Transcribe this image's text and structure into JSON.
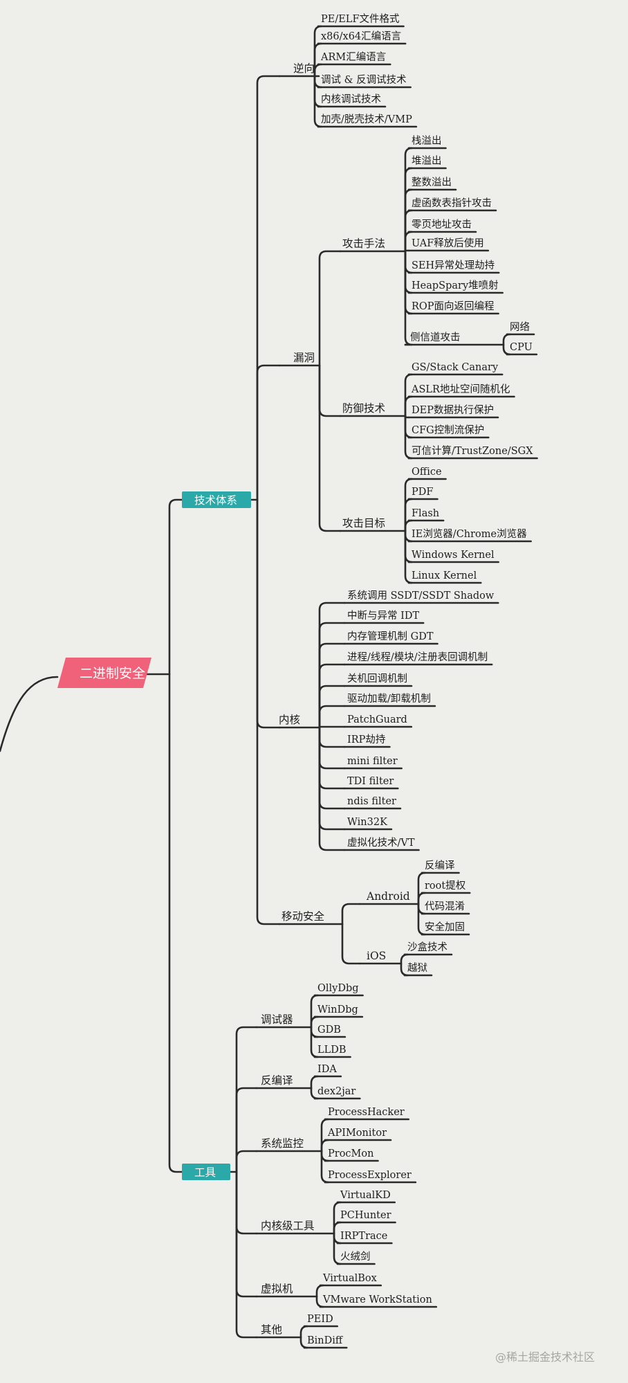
{
  "root": {
    "label": "二进制安全",
    "color": "#f0627a",
    "children": [
      {
        "label": "技术体系",
        "kind": "l1",
        "color": "#2ba8a8",
        "children": [
          {
            "label": "逆向",
            "children": [
              {
                "label": "PE/ELF文件格式"
              },
              {
                "label": "x86/x64汇编语言"
              },
              {
                "label": "ARM汇编语言"
              },
              {
                "label": "调试 & 反调试技术"
              },
              {
                "label": "内核调试技术"
              },
              {
                "label": "加壳/脱壳技术/VMP"
              }
            ]
          },
          {
            "label": "漏洞",
            "children": [
              {
                "label": "攻击手法",
                "children": [
                  {
                    "label": "栈溢出"
                  },
                  {
                    "label": "堆溢出"
                  },
                  {
                    "label": "整数溢出"
                  },
                  {
                    "label": "虚函数表指针攻击"
                  },
                  {
                    "label": "零页地址攻击"
                  },
                  {
                    "label": "UAF释放后使用"
                  },
                  {
                    "label": "SEH异常处理劫持"
                  },
                  {
                    "label": "HeapSpary堆喷射"
                  },
                  {
                    "label": "ROP面向返回编程"
                  },
                  {
                    "label": "侧信道攻击",
                    "children": [
                      {
                        "label": "网络"
                      },
                      {
                        "label": "CPU"
                      }
                    ]
                  }
                ]
              },
              {
                "label": "防御技术",
                "children": [
                  {
                    "label": "GS/Stack Canary"
                  },
                  {
                    "label": "ASLR地址空间随机化"
                  },
                  {
                    "label": "DEP数据执行保护"
                  },
                  {
                    "label": "CFG控制流保护"
                  },
                  {
                    "label": "可信计算/TrustZone/SGX"
                  }
                ]
              },
              {
                "label": "攻击目标",
                "children": [
                  {
                    "label": "Office"
                  },
                  {
                    "label": "PDF"
                  },
                  {
                    "label": "Flash"
                  },
                  {
                    "label": "IE浏览器/Chrome浏览器"
                  },
                  {
                    "label": "Windows Kernel"
                  },
                  {
                    "label": "Linux Kernel"
                  }
                ]
              }
            ]
          },
          {
            "label": "内核",
            "children": [
              {
                "label": "系统调用 SSDT/SSDT Shadow"
              },
              {
                "label": "中断与异常 IDT"
              },
              {
                "label": "内存管理机制 GDT"
              },
              {
                "label": "进程/线程/模块/注册表回调机制"
              },
              {
                "label": "关机回调机制"
              },
              {
                "label": "驱动加载/卸载机制"
              },
              {
                "label": "PatchGuard"
              },
              {
                "label": "IRP劫持"
              },
              {
                "label": "mini filter"
              },
              {
                "label": "TDI filter"
              },
              {
                "label": "ndis filter"
              },
              {
                "label": "Win32K"
              },
              {
                "label": "虚拟化技术/VT"
              }
            ]
          },
          {
            "label": "移动安全",
            "children": [
              {
                "label": "Android",
                "children": [
                  {
                    "label": "反编译"
                  },
                  {
                    "label": "root提权"
                  },
                  {
                    "label": "代码混淆"
                  },
                  {
                    "label": "安全加固"
                  }
                ]
              },
              {
                "label": "iOS",
                "children": [
                  {
                    "label": "沙盒技术"
                  },
                  {
                    "label": "越狱"
                  }
                ]
              }
            ]
          }
        ]
      },
      {
        "label": "工具",
        "kind": "l1",
        "color": "#2ba8a8",
        "children": [
          {
            "label": "调试器",
            "children": [
              {
                "label": "OllyDbg"
              },
              {
                "label": "WinDbg"
              },
              {
                "label": "GDB"
              },
              {
                "label": "LLDB"
              }
            ]
          },
          {
            "label": "反编译",
            "children": [
              {
                "label": "IDA"
              },
              {
                "label": "dex2jar"
              }
            ]
          },
          {
            "label": "系统监控",
            "children": [
              {
                "label": "ProcessHacker"
              },
              {
                "label": "APIMonitor"
              },
              {
                "label": "ProcMon"
              },
              {
                "label": "ProcessExplorer"
              }
            ]
          },
          {
            "label": "内核级工具",
            "children": [
              {
                "label": "VirtualKD"
              },
              {
                "label": "PCHunter"
              },
              {
                "label": "IRPTrace"
              },
              {
                "label": "火绒剑"
              }
            ]
          },
          {
            "label": "虚拟机",
            "children": [
              {
                "label": "VirtualBox"
              },
              {
                "label": "VMware WorkStation"
              }
            ]
          },
          {
            "label": "其他",
            "children": [
              {
                "label": "PEID"
              },
              {
                "label": "BinDiff"
              }
            ]
          }
        ]
      }
    ]
  },
  "watermark": "@稀土掘金技术社区",
  "colors": {
    "line": "#2a2a2a",
    "background": "#eeeeeb"
  }
}
